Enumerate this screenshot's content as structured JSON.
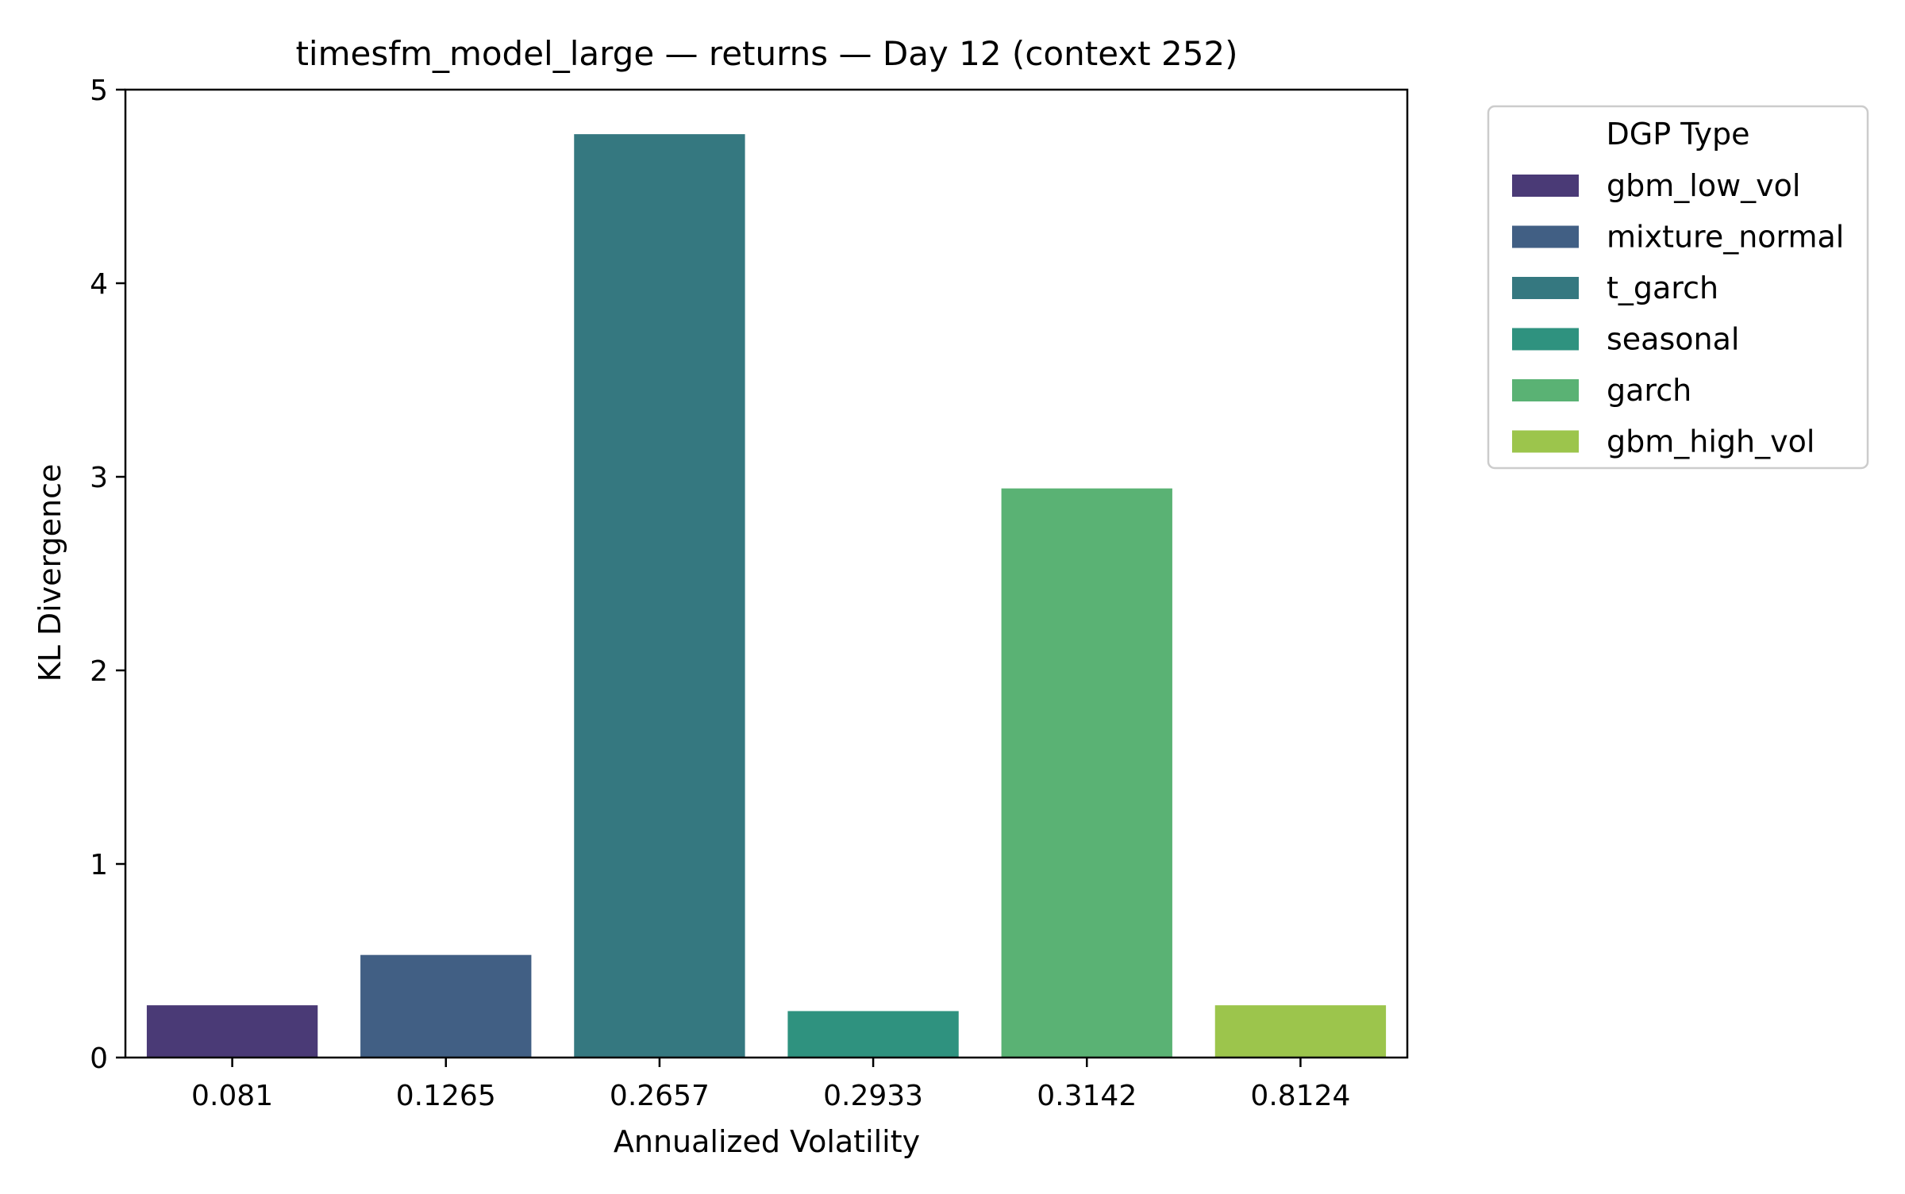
{
  "chart_data": {
    "type": "bar",
    "title": "timesfm_model_large — returns — Day 12 (context 252)",
    "xlabel": "Annualized Volatility",
    "ylabel": "KL Divergence",
    "categories": [
      "0.081",
      "0.1265",
      "0.2657",
      "0.2933",
      "0.3142",
      "0.8124"
    ],
    "series": [
      {
        "name": "gbm_low_vol",
        "values": [
          0.27,
          null,
          null,
          null,
          null,
          null
        ]
      },
      {
        "name": "mixture_normal",
        "values": [
          null,
          0.53,
          null,
          null,
          null,
          null
        ]
      },
      {
        "name": "t_garch",
        "values": [
          null,
          null,
          4.77,
          null,
          null,
          null
        ]
      },
      {
        "name": "seasonal",
        "values": [
          null,
          null,
          null,
          0.24,
          null,
          null
        ]
      },
      {
        "name": "garch",
        "values": [
          null,
          null,
          null,
          null,
          2.94,
          null
        ]
      },
      {
        "name": "gbm_high_vol",
        "values": [
          null,
          null,
          null,
          null,
          null,
          0.27
        ]
      }
    ],
    "colors": [
      "#4a3a76",
      "#415f84",
      "#357880",
      "#2f927f",
      "#5ab274",
      "#9cc54c"
    ],
    "ylim": [
      0,
      5
    ],
    "yticks": [
      "0",
      "1",
      "2",
      "3",
      "4",
      "5"
    ],
    "grid": false,
    "legend": {
      "title": "DGP Type",
      "placement": "outside-top-right"
    }
  }
}
